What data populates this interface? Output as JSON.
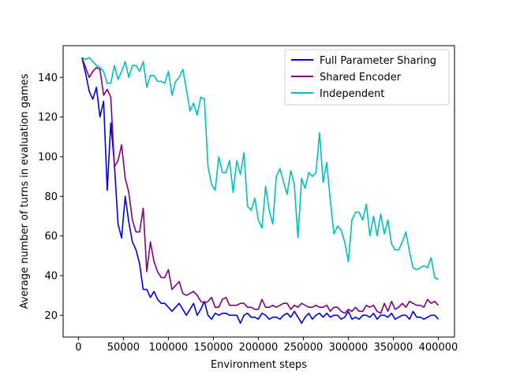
{
  "chart_data": {
    "type": "line",
    "title": "",
    "xlabel": "Environment steps",
    "ylabel": "Average number of turns in evaluation games",
    "xlim": [
      -17000,
      418000
    ],
    "ylim": [
      9,
      156
    ],
    "xticks": [
      0,
      50000,
      100000,
      150000,
      200000,
      250000,
      300000,
      350000,
      400000
    ],
    "yticks": [
      20,
      40,
      60,
      80,
      100,
      120,
      140
    ],
    "grid": false,
    "legend_position": "top-right",
    "x": [
      4000,
      8000,
      12000,
      16000,
      20000,
      24000,
      28000,
      32000,
      36000,
      40000,
      44000,
      48000,
      52000,
      56000,
      60000,
      64000,
      68000,
      72000,
      76000,
      80000,
      84000,
      88000,
      92000,
      96000,
      100000,
      104000,
      108000,
      112000,
      116000,
      120000,
      124000,
      128000,
      132000,
      136000,
      140000,
      144000,
      148000,
      152000,
      156000,
      160000,
      164000,
      168000,
      172000,
      176000,
      180000,
      184000,
      188000,
      192000,
      196000,
      200000,
      204000,
      208000,
      212000,
      216000,
      220000,
      224000,
      228000,
      232000,
      236000,
      240000,
      244000,
      248000,
      252000,
      256000,
      260000,
      264000,
      268000,
      272000,
      276000,
      280000,
      284000,
      288000,
      292000,
      296000,
      300000,
      304000,
      308000,
      312000,
      316000,
      320000,
      324000,
      328000,
      332000,
      336000,
      340000,
      344000,
      348000,
      352000,
      356000,
      360000,
      364000,
      368000,
      372000,
      376000,
      380000,
      384000,
      388000,
      392000,
      396000,
      400000
    ],
    "series": [
      {
        "name": "Full Parameter Sharing",
        "color": "#0000e0",
        "values": [
          150,
          142,
          133,
          129,
          135,
          120,
          128,
          83,
          117,
          96,
          66,
          59,
          80,
          67,
          57,
          53,
          46,
          33,
          33,
          29,
          32,
          28,
          26,
          26,
          24,
          22,
          24,
          26,
          23,
          20,
          23,
          26,
          20,
          23,
          27,
          20,
          18,
          21,
          20,
          21,
          21,
          20,
          20,
          20,
          16,
          20,
          21,
          19,
          19,
          18,
          21,
          20,
          18,
          19,
          19,
          18,
          20,
          21,
          19,
          22,
          19,
          16,
          19,
          21,
          18,
          20,
          21,
          19,
          21,
          19,
          20,
          20,
          18,
          19,
          22,
          18,
          19,
          18,
          20,
          20,
          19,
          21,
          18,
          20,
          20,
          19,
          21,
          18,
          19,
          20,
          20,
          18,
          22,
          19,
          19,
          18,
          19,
          20,
          20,
          18
        ]
      },
      {
        "name": "Shared Encoder",
        "color": "#800080",
        "values": [
          150,
          145,
          140,
          143,
          145,
          144,
          131,
          134,
          130,
          95,
          98,
          106,
          89,
          82,
          68,
          62,
          62,
          74,
          42,
          57,
          47,
          42,
          39,
          39,
          43,
          33,
          35,
          37,
          31,
          30,
          31,
          32,
          30,
          27,
          26,
          27,
          29,
          24,
          24,
          28,
          29,
          25,
          25,
          25,
          26,
          26,
          24,
          24,
          23,
          23,
          28,
          24,
          24,
          25,
          24,
          25,
          26,
          26,
          23,
          25,
          24,
          26,
          25,
          24,
          24,
          25,
          24,
          24,
          25,
          22,
          24,
          24,
          22,
          21,
          23,
          22,
          24,
          22,
          22,
          25,
          24,
          25,
          22,
          21,
          26,
          22,
          27,
          23,
          24,
          26,
          24,
          27,
          26,
          25,
          25,
          24,
          28,
          26,
          27,
          25
        ]
      },
      {
        "name": "Independent",
        "color": "#00bfbf",
        "values": [
          150,
          149,
          150,
          148,
          146,
          145,
          143,
          137,
          137,
          146,
          139,
          143,
          148,
          140,
          146,
          146,
          143,
          148,
          135,
          141,
          141,
          138,
          138,
          137,
          143,
          131,
          138,
          140,
          144,
          134,
          123,
          127,
          121,
          130,
          129,
          95,
          86,
          83,
          100,
          92,
          92,
          98,
          82,
          98,
          91,
          102,
          75,
          73,
          79,
          68,
          64,
          85,
          73,
          66,
          90,
          94,
          87,
          81,
          93,
          86,
          59,
          89,
          84,
          92,
          90,
          92,
          112,
          87,
          97,
          78,
          61,
          65,
          63,
          57,
          47,
          68,
          72,
          72,
          68,
          76,
          60,
          70,
          60,
          71,
          61,
          68,
          56,
          53,
          53,
          57,
          62,
          52,
          44,
          43,
          44,
          45,
          44,
          49,
          39,
          38
        ]
      }
    ]
  }
}
